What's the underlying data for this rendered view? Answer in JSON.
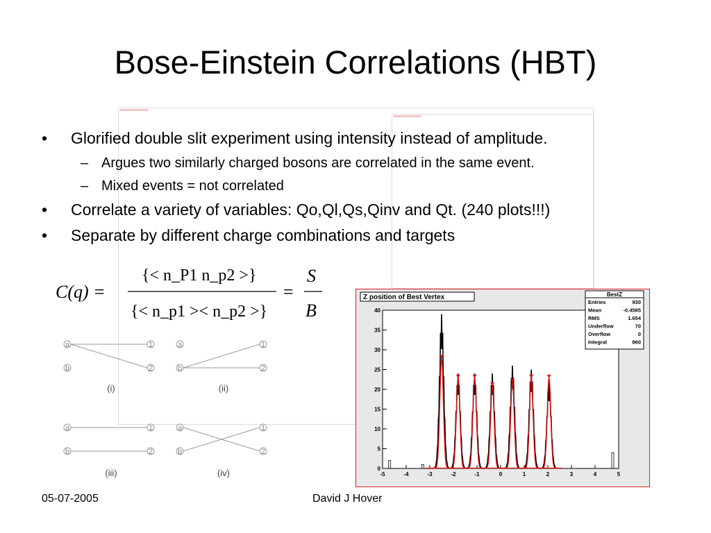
{
  "slide": {
    "title": "Bose-Einstein Correlations (HBT)",
    "bullets": [
      {
        "level": 1,
        "text": "Glorified double slit experiment using intensity instead of amplitude."
      },
      {
        "level": 2,
        "text": "Argues two similarly charged bosons are correlated in the same event."
      },
      {
        "level": 2,
        "text": "Mixed events = not correlated"
      },
      {
        "level": 1,
        "text": "Correlate a variety of variables: Qo,Ql,Qs,Qinv and Qt. (240 plots!!!)"
      },
      {
        "level": 1,
        "text": "Separate by different charge combinations and targets"
      }
    ],
    "bullet_marks": {
      "level1": "•",
      "level2": "–"
    },
    "footer": {
      "date": "05-07-2005",
      "author": "David J Hover"
    }
  },
  "formula": {
    "lhs": "C(q) =",
    "numerator": "{< n_P1 n_p2 >}",
    "denominator": "{< n_p1 >< n_p2 >}",
    "rhs_numerator": "S",
    "rhs_denominator": "B"
  },
  "diagrams": {
    "node_labels": {
      "a": "a",
      "b": "b",
      "one": "1",
      "two": "2"
    },
    "panels": [
      {
        "label": "(i)",
        "type": "cross-lower"
      },
      {
        "label": "(ii)",
        "type": "cross-upper"
      },
      {
        "label": "(iii)",
        "type": "parallel"
      },
      {
        "label": "(iv)",
        "type": "cross"
      }
    ]
  },
  "colors": {
    "hist_border": "#d82020",
    "fit": "#e01010",
    "data": "#000000",
    "frame_bg": "#e8e8e8"
  },
  "chart_data": {
    "type": "histogram",
    "title": "Z position of Best Vertex",
    "xlim": [
      -5,
      5
    ],
    "ylim": [
      0,
      40
    ],
    "x_ticks": [
      -5,
      -4,
      -3,
      -2,
      -1,
      0,
      1,
      2,
      3,
      4,
      5
    ],
    "y_ticks": [
      0,
      5,
      10,
      15,
      20,
      25,
      30,
      35,
      40
    ],
    "peaks": [
      {
        "x": -2.5,
        "height": 39,
        "fit_height": 28
      },
      {
        "x": -1.8,
        "height": 24,
        "fit_height": 23
      },
      {
        "x": -1.1,
        "height": 24,
        "fit_height": 23
      },
      {
        "x": -0.35,
        "height": 24,
        "fit_height": 21
      },
      {
        "x": 0.5,
        "height": 26,
        "fit_height": 22
      },
      {
        "x": 1.3,
        "height": 25,
        "fit_height": 23
      },
      {
        "x": 2.05,
        "height": 22,
        "fit_height": 23
      }
    ],
    "minor_bins": [
      {
        "x": -4.7,
        "height": 2
      },
      {
        "x": -3.3,
        "height": 1
      },
      {
        "x": 4.75,
        "height": 4
      }
    ],
    "stats": {
      "name": "BestZ",
      "rows": [
        {
          "label": "Entries",
          "value": "930"
        },
        {
          "label": "Mean",
          "value": "-0.4585"
        },
        {
          "label": "RMS",
          "value": "1.654"
        },
        {
          "label": "Underflow",
          "value": "70"
        },
        {
          "label": "Overflow",
          "value": "0"
        },
        {
          "label": "Integral",
          "value": "860"
        }
      ]
    }
  }
}
